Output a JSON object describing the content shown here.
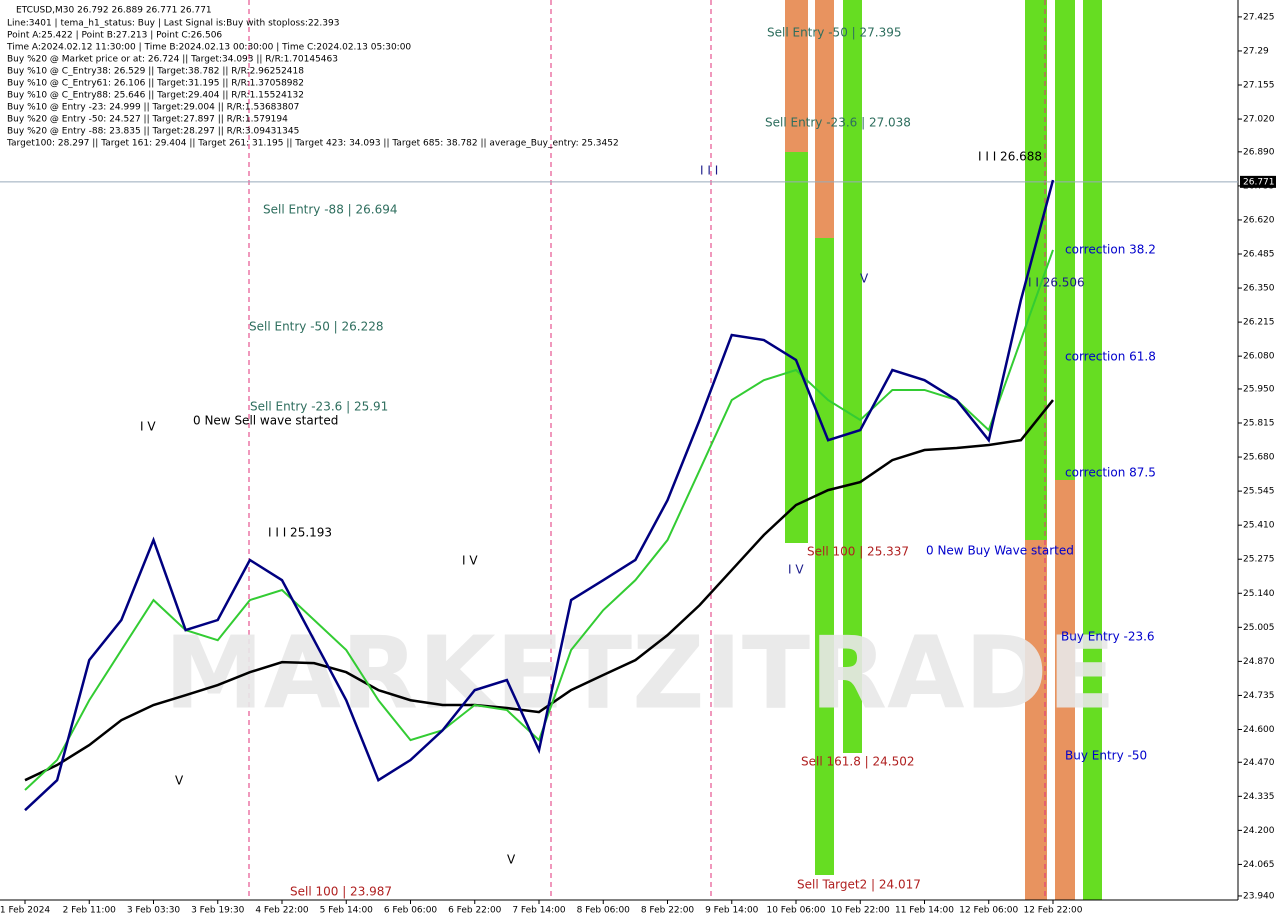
{
  "chart_data": {
    "type": "line",
    "title": "ETCUSD,M30  26.792 26.889 26.771 26.771",
    "info_lines": [
      "Line:3401 | tema_h1_status: Buy | Last Signal is:Buy with stoploss:22.393",
      "Point A:25.422 | Point B:27.213 | Point C:26.506",
      "Time A:2024.02.12 11:30:00 | Time B:2024.02.13 00:30:00 | Time C:2024.02.13 05:30:00",
      "Buy %20 @ Market price or at: 26.724 || Target:34.093 || R/R:1.70145463",
      "Buy %10 @ C_Entry38: 26.529 || Target:38.782 || R/R:2.96252418",
      "Buy %10 @ C_Entry61: 26.106 || Target:31.195 || R/R:1.37058982",
      "Buy %10 @ C_Entry88: 25.646 || Target:29.404 || R/R:1.15524132",
      "Buy %10 @ Entry -23: 24.999 || Target:29.004 || R/R:1.53683807",
      "Buy %20 @ Entry -50: 24.527 || Target:27.897 || R/R:1.579194",
      "Buy %20 @ Entry -88: 23.835 || Target:28.297 || R/R:3.09431345",
      "Target100: 28.297 || Target 161: 29.404 || Target 261: 31.195 || Target 423: 34.093 || Target 685: 38.782 || average_Buy_entry: 25.3452"
    ],
    "watermark": "MARKETZITRADE",
    "categories": [
      "1 Feb 2024",
      null,
      "2 Feb 11:00",
      null,
      "3 Feb 03:30",
      null,
      "3 Feb 19:30",
      null,
      "4 Feb 22:00",
      null,
      "5 Feb 14:00",
      null,
      "6 Feb 06:00",
      null,
      "6 Feb 22:00",
      null,
      "7 Feb 14:00",
      null,
      "8 Feb 06:00",
      null,
      "8 Feb 22:00",
      null,
      "9 Feb 14:00",
      null,
      "10 Feb 06:00",
      null,
      "10 Feb 22:00",
      null,
      "11 Feb 14:00",
      null,
      "12 Feb 06:00",
      null,
      "12 Feb 22:00"
    ],
    "series": [
      {
        "color": "#000000",
        "values": [
          24.399,
          24.459,
          24.538,
          24.637,
          24.697,
          24.736,
          24.776,
          24.827,
          24.867,
          24.863,
          24.827,
          24.756,
          24.716,
          24.697,
          24.697,
          24.685,
          24.669,
          24.756,
          24.816,
          24.875,
          24.974,
          25.093,
          25.232,
          25.371,
          25.49,
          25.549,
          25.581,
          25.668,
          25.708,
          25.716,
          25.728,
          25.747,
          25.906
        ]
      },
      {
        "color": "#33cc33",
        "values": [
          24.36,
          24.479,
          24.716,
          24.915,
          25.113,
          24.994,
          24.954,
          25.113,
          25.153,
          25.034,
          24.915,
          24.716,
          24.558,
          24.597,
          24.697,
          24.677,
          24.558,
          24.915,
          25.073,
          25.192,
          25.351,
          25.628,
          25.906,
          25.985,
          26.025,
          25.906,
          25.827,
          25.946,
          25.946,
          25.906,
          25.787,
          26.144,
          26.501
        ]
      },
      {
        "color": "#000080",
        "values": [
          24.28,
          24.399,
          24.875,
          25.034,
          25.351,
          24.994,
          25.034,
          25.272,
          25.192,
          24.954,
          24.716,
          24.399,
          24.479,
          24.597,
          24.756,
          24.796,
          24.518,
          25.113,
          25.192,
          25.272,
          25.509,
          25.827,
          26.164,
          26.144,
          26.065,
          25.747,
          25.787,
          26.025,
          25.985,
          25.906,
          25.747,
          26.302,
          26.778
        ]
      }
    ],
    "ylim": [
      23.924,
      27.492
    ],
    "yticks": [
      27.425,
      27.29,
      27.155,
      {
        "value": 27.02,
        "label": "27.020"
      },
      {
        "value": 26.89,
        "label": "26.890"
      },
      26.755,
      {
        "value": 26.62,
        "label": "26.620"
      },
      26.485,
      {
        "value": 26.35,
        "label": "26.350"
      },
      26.215,
      {
        "value": 26.08,
        "label": "26.080"
      },
      {
        "value": 25.95,
        "label": "25.950"
      },
      25.815,
      {
        "value": 25.68,
        "label": "25.680"
      },
      25.545,
      {
        "value": 25.41,
        "label": "25.410"
      },
      25.275,
      {
        "value": 25.14,
        "label": "25.140"
      },
      25.005,
      {
        "value": 24.87,
        "label": "24.870"
      },
      24.735,
      {
        "value": 24.6,
        "label": "24.600"
      },
      {
        "value": 24.47,
        "label": "24.470"
      },
      24.335,
      {
        "value": 24.2,
        "label": "24.200"
      },
      24.065,
      {
        "value": 23.94,
        "label": "23.940"
      }
    ],
    "current_price": {
      "value": 26.771,
      "label": "26.771"
    },
    "annotations": [
      "Sell Entry -50 | 27.395",
      "Sell Entry -23.6 | 27.038",
      "Sell Entry -88 | 26.694",
      "Sell Entry -50 | 26.228",
      "Sell Entry -23.6 | 25.91",
      "0 New Sell wave started",
      "I I I 25.193",
      "I I I 26.688",
      "I I 26.506",
      "Sell 100 | 25.337",
      "0 New Buy Wave started",
      "Sell 100 | 23.987",
      "Sell 161.8 | 24.502",
      "Sell Target2 | 24.017",
      "correction 38.2",
      "correction 61.8",
      "correction 87.5",
      "Buy Entry -23.6",
      "Buy Entry -50",
      "I V",
      "V",
      "I V",
      "V",
      "I I I",
      "V",
      "I V"
    ]
  }
}
